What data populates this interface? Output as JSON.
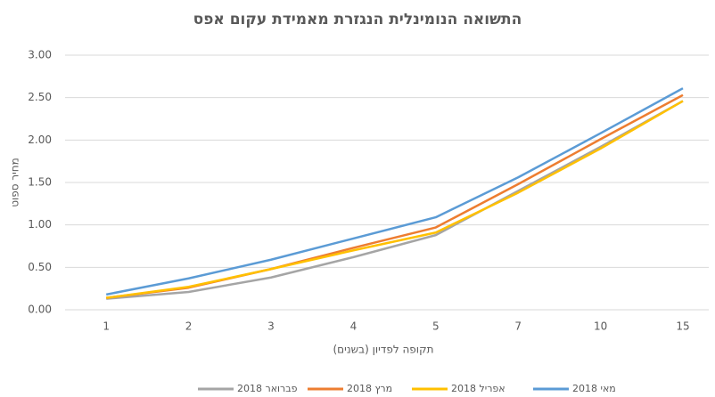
{
  "chart_data": {
    "type": "line",
    "title": "התשואה הנומינלית הנגזרת מאמידת עקום אפס",
    "y_label": "מחיר ספוט",
    "x_label": "תקופה לפדיון (בשנים)",
    "categories": [
      "1",
      "2",
      "3",
      "4",
      "5",
      "7",
      "10",
      "15"
    ],
    "series": [
      {
        "name": "פברואר 2018",
        "color": "#a5a5a5",
        "values": [
          0.13,
          0.21,
          0.38,
          0.62,
          0.88,
          1.4,
          1.92,
          2.46
        ]
      },
      {
        "name": "מרץ 2018",
        "color": "#ed7d31",
        "values": [
          0.14,
          0.26,
          0.48,
          0.73,
          0.97,
          1.48,
          2.01,
          2.53
        ]
      },
      {
        "name": "אפריל 2018",
        "color": "#ffc000",
        "values": [
          0.14,
          0.27,
          0.48,
          0.7,
          0.91,
          1.38,
          1.9,
          2.46
        ]
      },
      {
        "name": "מאי 2018",
        "color": "#5b9bd5",
        "values": [
          0.18,
          0.37,
          0.59,
          0.84,
          1.09,
          1.56,
          2.08,
          2.61
        ]
      }
    ],
    "ylim": [
      0,
      3
    ],
    "yticks": [
      {
        "value": 0,
        "label": "0.00"
      },
      {
        "value": 0.5,
        "label": "0.50"
      },
      {
        "value": 1,
        "label": "1.00"
      },
      {
        "value": 1.5,
        "label": "1.50"
      },
      {
        "value": 2,
        "label": "2.00"
      },
      {
        "value": 2.5,
        "label": "2.50"
      },
      {
        "value": 3,
        "label": "3.00"
      }
    ],
    "grid": true,
    "legend": "bottom"
  }
}
